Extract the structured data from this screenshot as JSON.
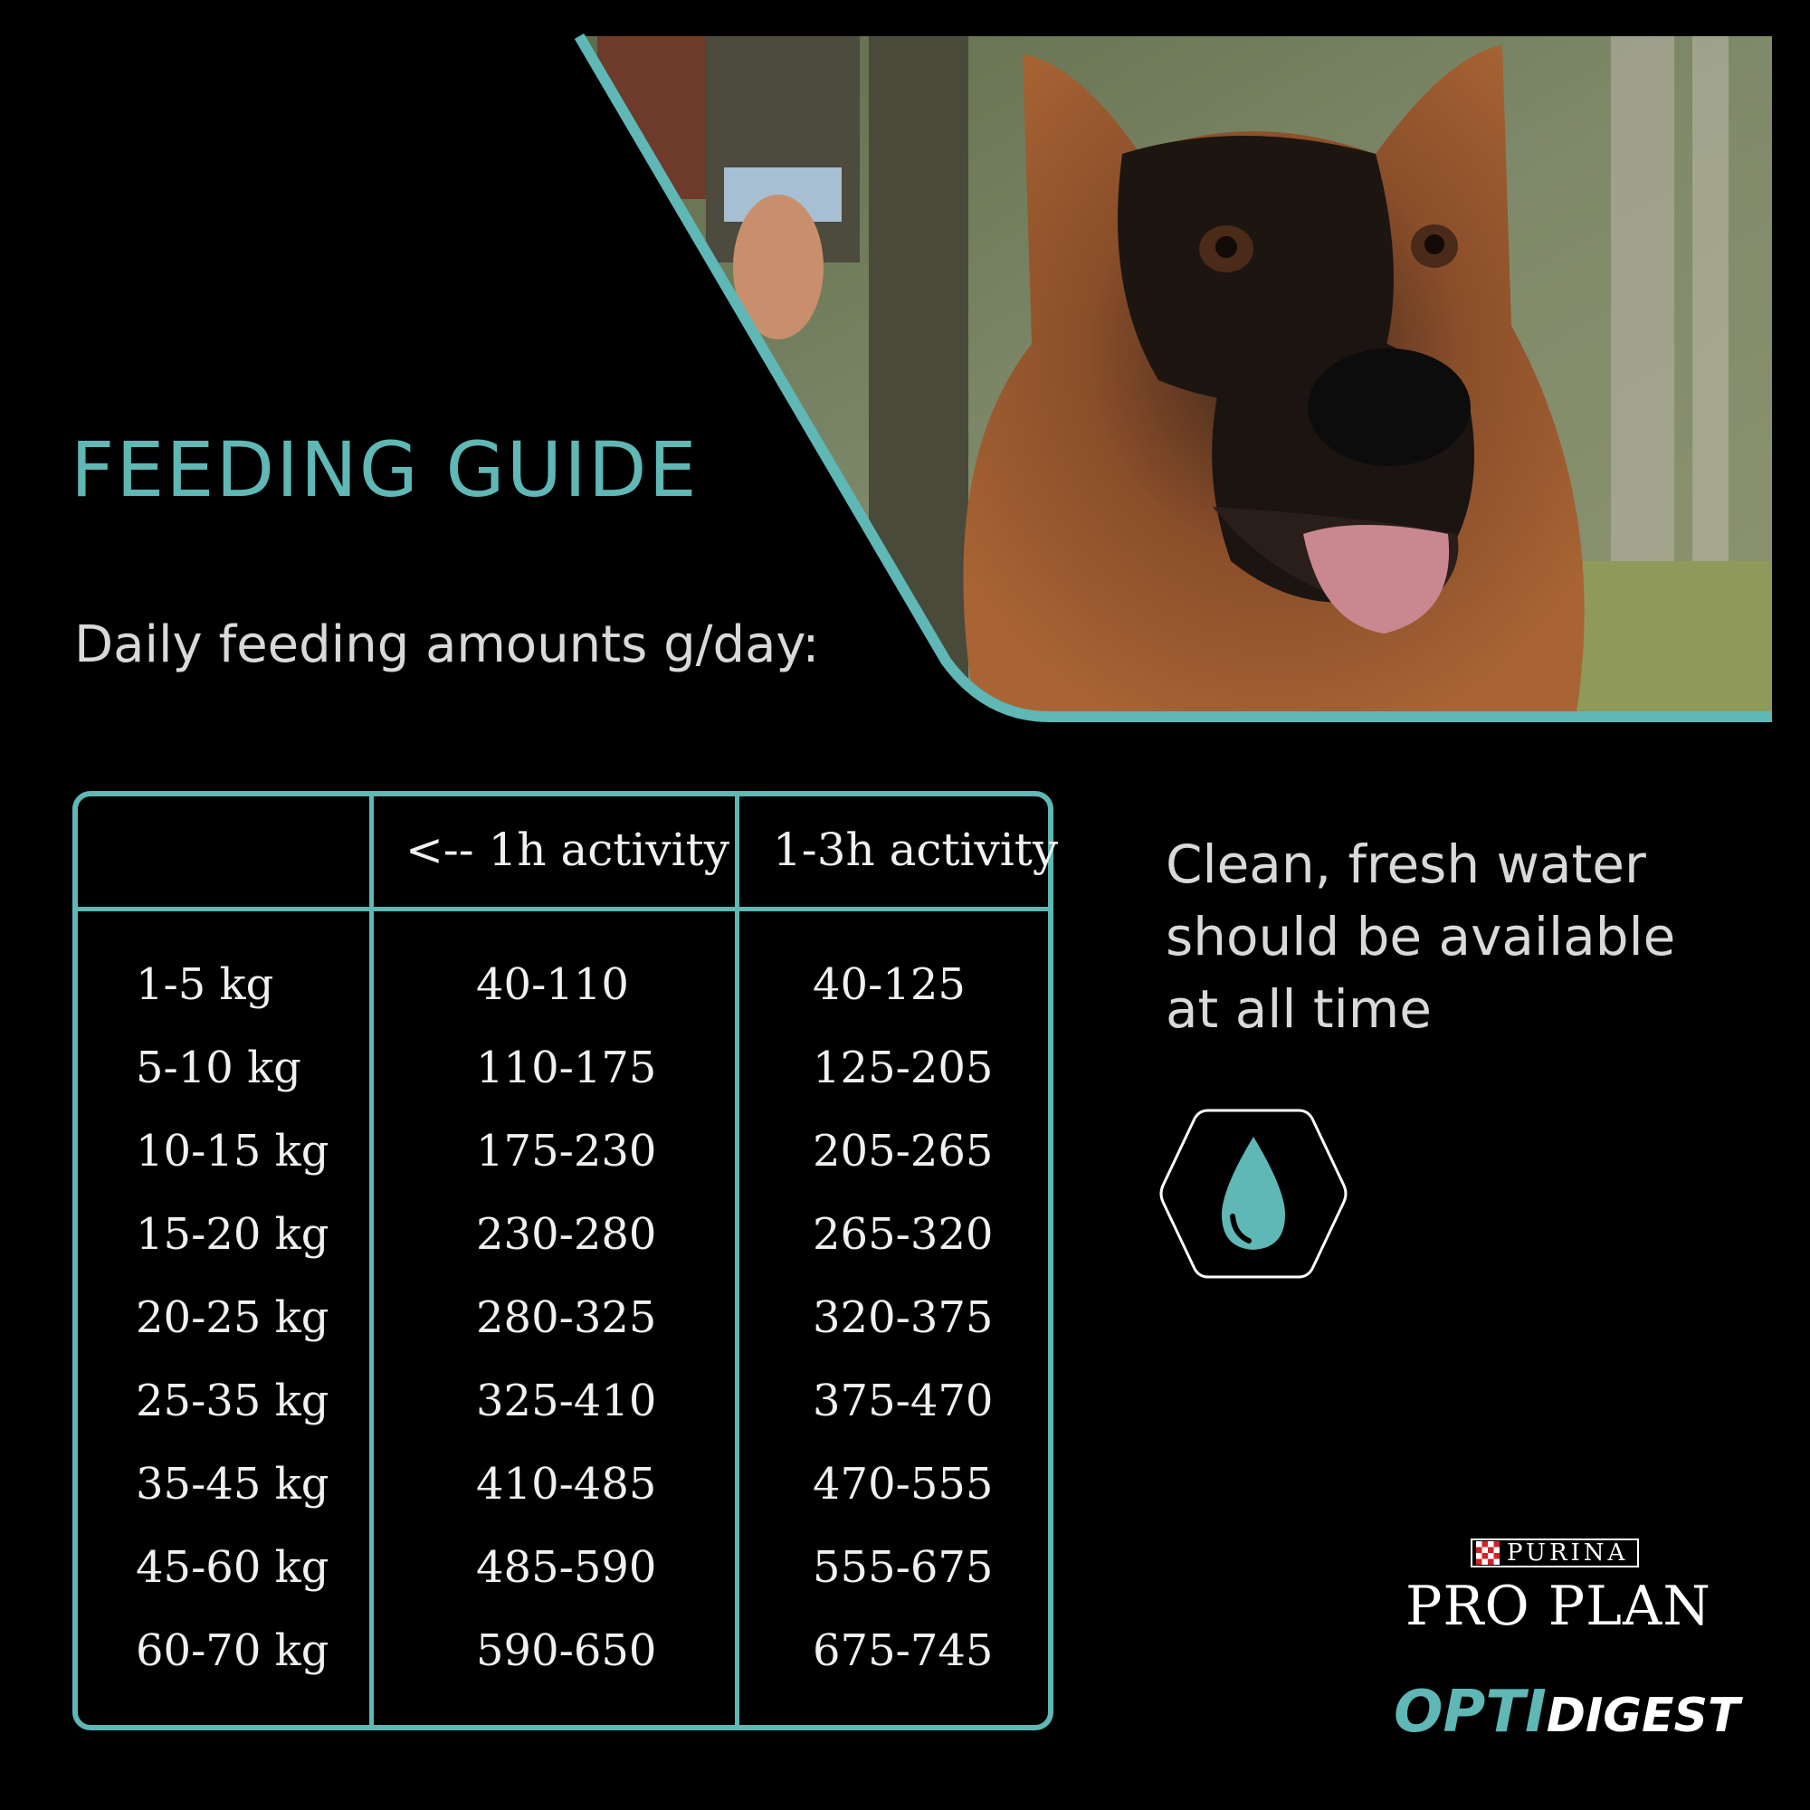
{
  "header": {
    "title": "FEEDING GUIDE",
    "subtitle": "Daily feeding amounts g/day:"
  },
  "table": {
    "columns": [
      "",
      "<-- 1h activity",
      "1-3h activity"
    ],
    "rows": [
      [
        "1-5 kg",
        "40-110",
        "40-125"
      ],
      [
        "5-10 kg",
        "110-175",
        "125-205"
      ],
      [
        "10-15 kg",
        "175-230",
        "205-265"
      ],
      [
        "15-20 kg",
        "230-280",
        "265-320"
      ],
      [
        "20-25 kg",
        "280-325",
        "320-375"
      ],
      [
        "25-35 kg",
        "325-410",
        "375-470"
      ],
      [
        "35-45 kg",
        "410-485",
        "470-555"
      ],
      [
        "45-60 kg",
        "485-590",
        "555-675"
      ],
      [
        "60-70 kg",
        "590-650",
        "675-745"
      ]
    ]
  },
  "water_note": {
    "lines": [
      "Clean, fresh water",
      "should be available",
      "at all time"
    ],
    "icon": "water-drop-icon"
  },
  "brand": {
    "purina": "PURINA",
    "pro_plan": "PRO PLAN",
    "opti": "OPTI",
    "digest": "DIGEST"
  },
  "colors": {
    "accent": "#5fb7b6",
    "background": "#000000",
    "text": "#e6e6e6"
  }
}
